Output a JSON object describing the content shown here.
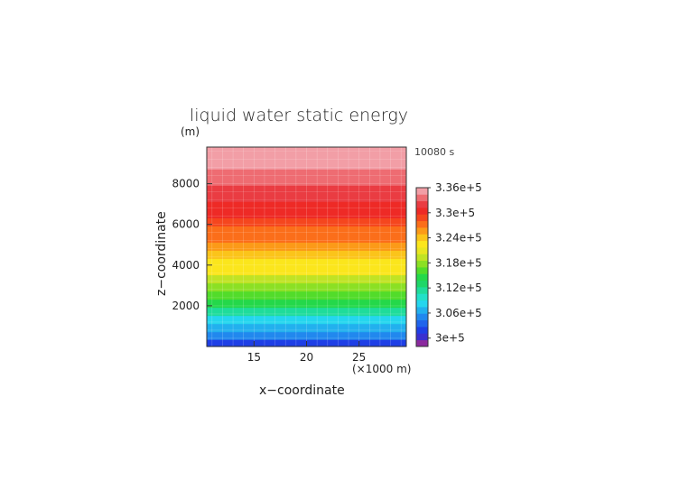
{
  "chart_data": {
    "type": "heatmap",
    "title": "liquid water static energy",
    "time_label": "10080 s",
    "xlabel": "x−coordinate",
    "x_unit": "(×1000 m)",
    "ylabel": "z−coordinate",
    "y_unit": "(m)",
    "x_range": [
      10.5,
      29.5
    ],
    "y_range": [
      0,
      9800
    ],
    "x_ticks": [
      15,
      20,
      25
    ],
    "y_ticks": [
      2000,
      4000,
      6000,
      8000
    ],
    "grid": true,
    "colorbar": {
      "levels": [
        298000.0,
        336000.0
      ],
      "labels": [
        {
          "value": 300000.0,
          "text": "3e+5"
        },
        {
          "value": 306000.0,
          "text": "3.06e+5"
        },
        {
          "value": 312000.0,
          "text": "3.12e+5"
        },
        {
          "value": 318000.0,
          "text": "3.18e+5"
        },
        {
          "value": 324000.0,
          "text": "3.24e+5"
        },
        {
          "value": 330000.0,
          "text": "3.3e+5"
        },
        {
          "value": 336000.0,
          "text": "3.36e+5"
        }
      ],
      "colors": [
        "#8b2a9e",
        "#3a2fd0",
        "#1e3fe6",
        "#1f64ec",
        "#2188ee",
        "#22b0ee",
        "#25d6ee",
        "#22e0c8",
        "#1fdc9a",
        "#1fd668",
        "#24d84a",
        "#52dc2a",
        "#8be024",
        "#c0e324",
        "#e8e620",
        "#fbe61c",
        "#fbc41a",
        "#fb9a18",
        "#fb6e1a",
        "#f5461e",
        "#ee2a26",
        "#ea3c42",
        "#ee6c72",
        "#f29ea6"
      ]
    },
    "rows": [
      {
        "z": 9700,
        "v": 337000.0
      },
      {
        "z": 9300,
        "v": 336000.0
      },
      {
        "z": 8900,
        "v": 335200.0
      },
      {
        "z": 8500,
        "v": 334400.0
      },
      {
        "z": 8100,
        "v": 333600.0
      },
      {
        "z": 7700,
        "v": 332800.0
      },
      {
        "z": 7300,
        "v": 332000.0
      },
      {
        "z": 6900,
        "v": 331000.0
      },
      {
        "z": 6500,
        "v": 330000.0
      },
      {
        "z": 6100,
        "v": 329000.0
      },
      {
        "z": 5700,
        "v": 328000.0
      },
      {
        "z": 5300,
        "v": 326800.0
      },
      {
        "z": 4900,
        "v": 325600.0
      },
      {
        "z": 4500,
        "v": 324400.0
      },
      {
        "z": 4100,
        "v": 323200.0
      },
      {
        "z": 3700,
        "v": 322000.0
      },
      {
        "z": 3300,
        "v": 320000.0
      },
      {
        "z": 2900,
        "v": 318000.0
      },
      {
        "z": 2500,
        "v": 316000.0
      },
      {
        "z": 2100,
        "v": 314000.0
      },
      {
        "z": 1700,
        "v": 311500.0
      },
      {
        "z": 1300,
        "v": 309000.0
      },
      {
        "z": 900,
        "v": 307000.0
      },
      {
        "z": 500,
        "v": 304500.0
      },
      {
        "z": 150,
        "v": 302000.0
      }
    ]
  }
}
